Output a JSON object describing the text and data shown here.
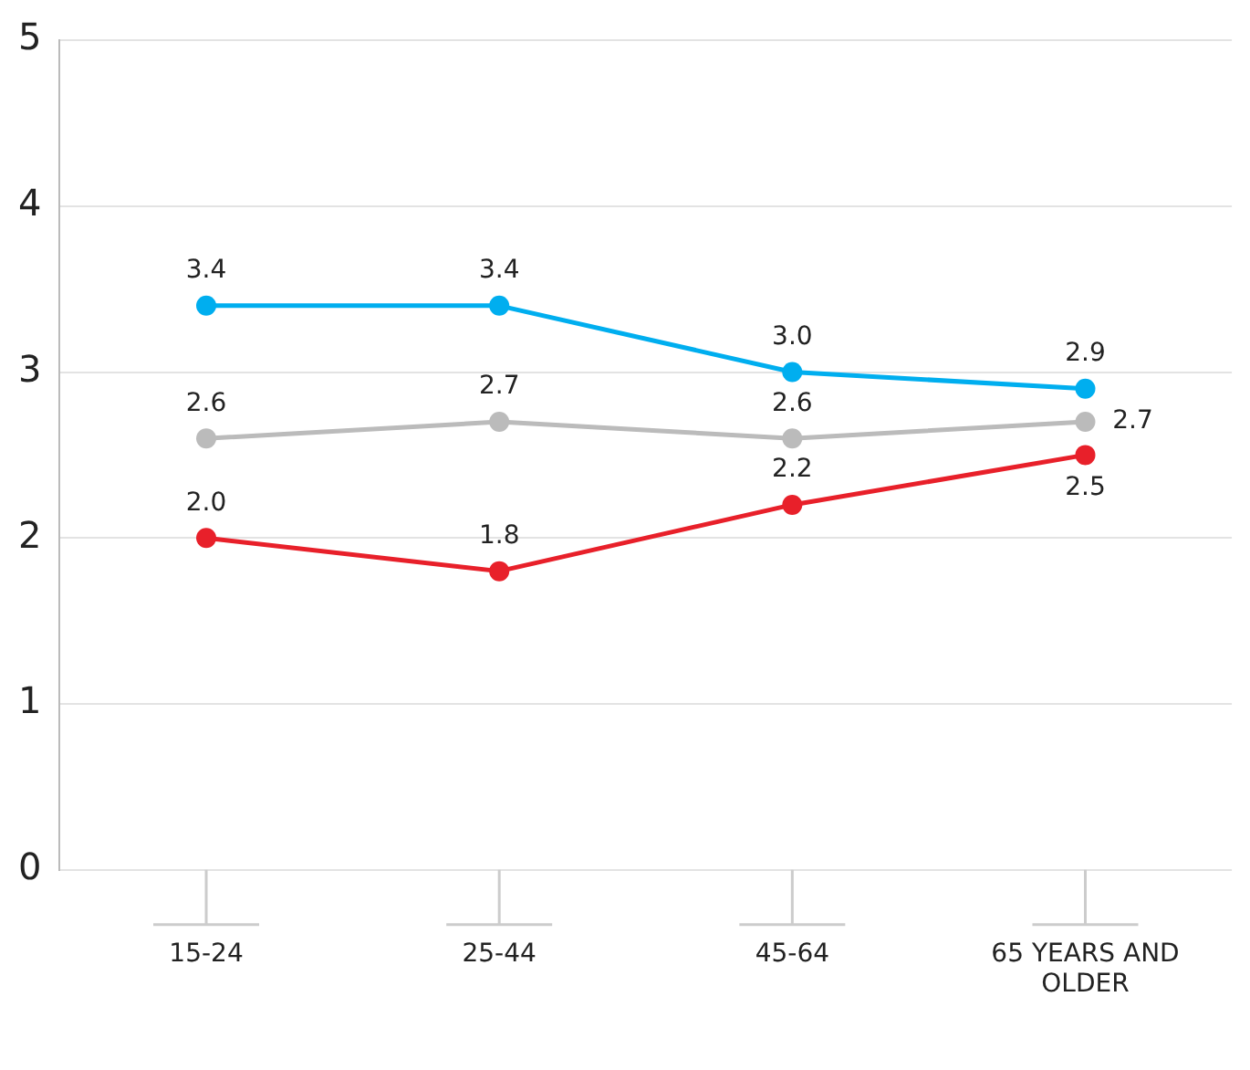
{
  "chart_data": {
    "type": "line",
    "categories": [
      "15-24",
      "25-44",
      "45-64",
      "65 YEARS AND OLDER"
    ],
    "series": [
      {
        "color": "#00aeef",
        "values": [
          3.4,
          3.4,
          3.0,
          2.9
        ],
        "value_labels": [
          "3.4",
          "3.4",
          "3.0",
          "2.9"
        ]
      },
      {
        "color": "#bbbbbb",
        "values": [
          2.6,
          2.7,
          2.6,
          2.7
        ],
        "value_labels": [
          "2.6",
          "2.7",
          "2.6",
          "2.7"
        ]
      },
      {
        "color": "#e8202a",
        "values": [
          2.0,
          1.8,
          2.2,
          2.5
        ],
        "value_labels": [
          "2.0",
          "1.8",
          "2.2",
          "2.5"
        ]
      }
    ],
    "ylim": [
      0,
      5
    ],
    "yticks": [
      0,
      1,
      2,
      3,
      4,
      5
    ],
    "grid": "y",
    "legend": false,
    "marker": "circle",
    "line_style": "solid"
  }
}
